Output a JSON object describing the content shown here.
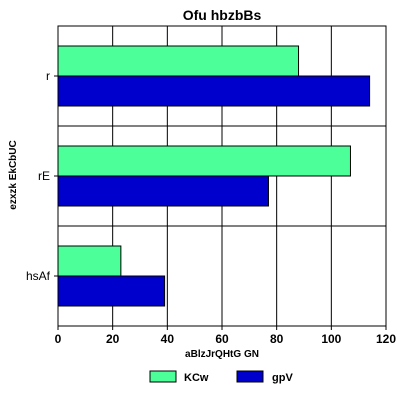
{
  "chart_data": {
    "type": "bar",
    "orientation": "horizontal",
    "title": "Ofu  hbzbBs",
    "xlabel": "aBlzJrQHtG  GN",
    "ylabel": "ezxzk  EkCbUC",
    "categories": [
      "r",
      "rE",
      "hsAf"
    ],
    "series": [
      {
        "name": "KCw",
        "color": "#4dff99",
        "values": [
          88,
          107,
          23
        ]
      },
      {
        "name": "gpV",
        "color": "#0000cc",
        "values": [
          114,
          77,
          39
        ]
      }
    ],
    "xlim": [
      0,
      120
    ],
    "xticks": [
      0,
      20,
      40,
      60,
      80,
      100,
      120
    ],
    "grid": true,
    "legend_position": "bottom"
  }
}
